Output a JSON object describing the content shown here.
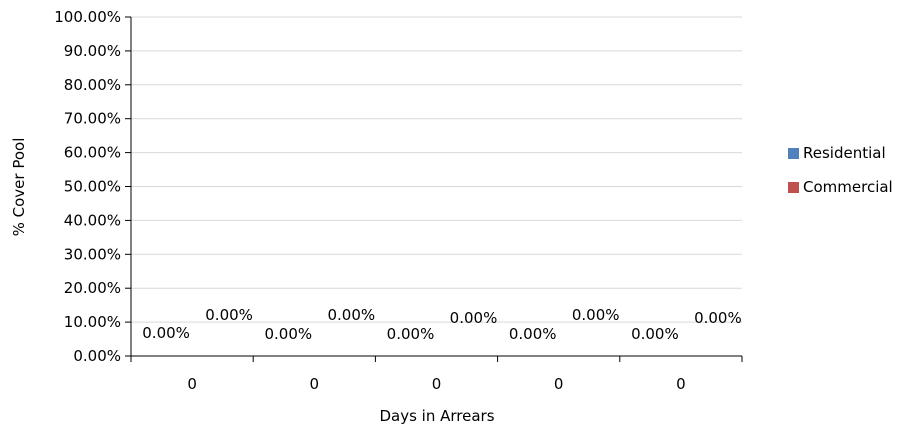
{
  "chart_data": {
    "type": "bar",
    "title": "",
    "xlabel": "Days in Arrears",
    "ylabel": "% Cover Pool",
    "categories": [
      "0",
      "0",
      "0",
      "0",
      "0"
    ],
    "series": [
      {
        "name": "Residential",
        "color": "#4f81bd",
        "values": [
          0,
          0,
          0,
          0,
          0
        ],
        "labels": [
          "0.00%",
          "0.00%",
          "0.00%",
          "0.00%",
          "0.00%"
        ]
      },
      {
        "name": "Commercial",
        "color": "#c0504d",
        "values": [
          0,
          0,
          0,
          0,
          0
        ],
        "labels": [
          "0.00%",
          "0.00%",
          "0.00%",
          "0.00%",
          "0.00%"
        ]
      }
    ],
    "ylim": [
      0,
      100
    ],
    "yticks": [
      "0.00%",
      "10.00%",
      "20.00%",
      "30.00%",
      "40.00%",
      "50.00%",
      "60.00%",
      "70.00%",
      "80.00%",
      "90.00%",
      "100.00%"
    ],
    "grid": true,
    "legend_position": "right"
  }
}
